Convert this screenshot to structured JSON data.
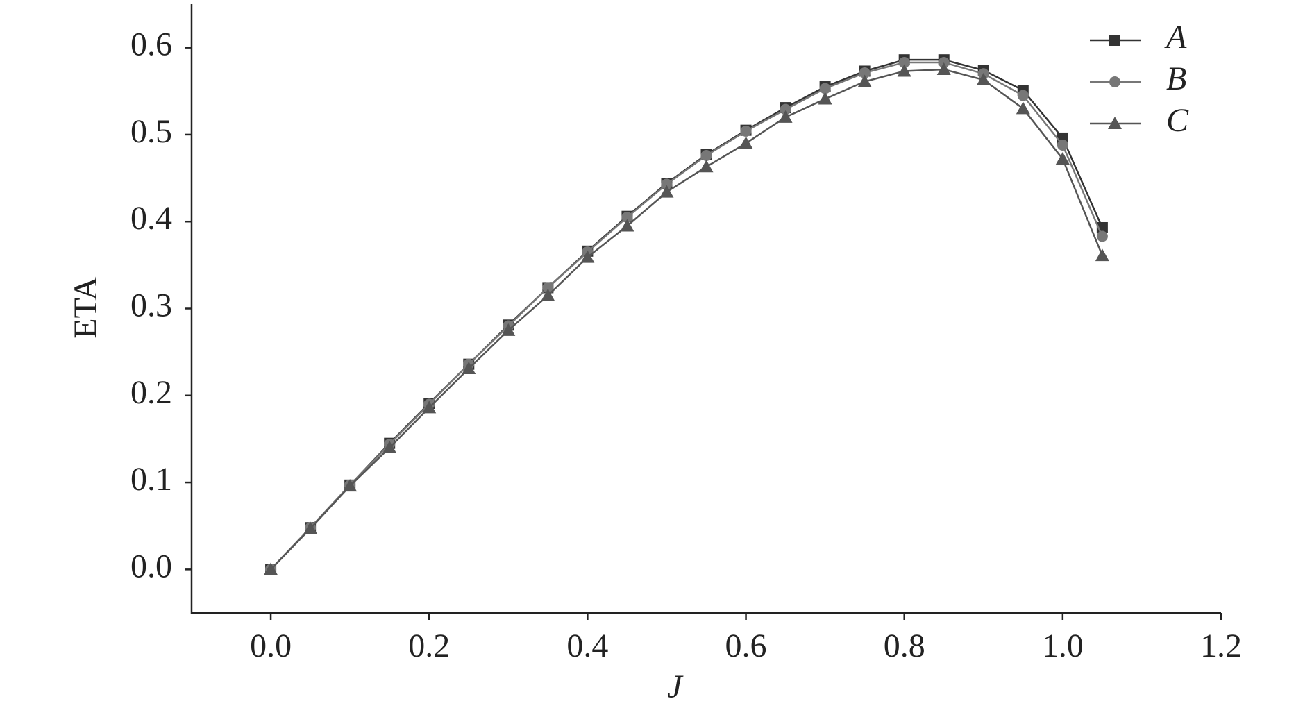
{
  "chart_data": {
    "type": "line",
    "x_label": "J",
    "y_label": "ETA",
    "x": [
      0,
      0.05,
      0.1,
      0.15,
      0.2,
      0.25,
      0.3,
      0.35,
      0.4,
      0.45,
      0.5,
      0.55,
      0.6,
      0.65,
      0.7,
      0.75,
      0.8,
      0.85,
      0.9,
      0.95,
      1.0,
      1.05
    ],
    "series": [
      {
        "name": "A",
        "color": "#333333",
        "marker": "square",
        "values": [
          0,
          0.048,
          0.097,
          0.145,
          0.191,
          0.236,
          0.281,
          0.324,
          0.366,
          0.406,
          0.444,
          0.477,
          0.505,
          0.531,
          0.555,
          0.573,
          0.586,
          0.586,
          0.574,
          0.551,
          0.496,
          0.393
        ]
      },
      {
        "name": "B",
        "color": "#777777",
        "marker": "circle",
        "values": [
          0,
          0.048,
          0.097,
          0.144,
          0.19,
          0.236,
          0.28,
          0.324,
          0.365,
          0.405,
          0.443,
          0.476,
          0.504,
          0.529,
          0.553,
          0.571,
          0.583,
          0.583,
          0.57,
          0.545,
          0.488,
          0.383
        ]
      },
      {
        "name": "C",
        "color": "#555555",
        "marker": "triangle",
        "values": [
          0,
          0.047,
          0.096,
          0.14,
          0.186,
          0.231,
          0.275,
          0.315,
          0.359,
          0.395,
          0.434,
          0.463,
          0.49,
          0.52,
          0.541,
          0.561,
          0.573,
          0.575,
          0.563,
          0.53,
          0.472,
          0.361
        ]
      }
    ],
    "xlim": [
      -0.1,
      1.2
    ],
    "xticks": [
      {
        "value": 0,
        "label": "0.0"
      },
      0.2,
      0.4,
      0.6,
      0.8,
      {
        "value": 1,
        "label": "1.0"
      },
      1.2
    ],
    "ylim": [
      -0.05,
      0.65
    ],
    "yticks": [
      {
        "value": 0,
        "label": "0.0"
      },
      0.1,
      0.2,
      0.3,
      0.4,
      0.5,
      0.6
    ],
    "grid": false,
    "legend": "upper right"
  }
}
